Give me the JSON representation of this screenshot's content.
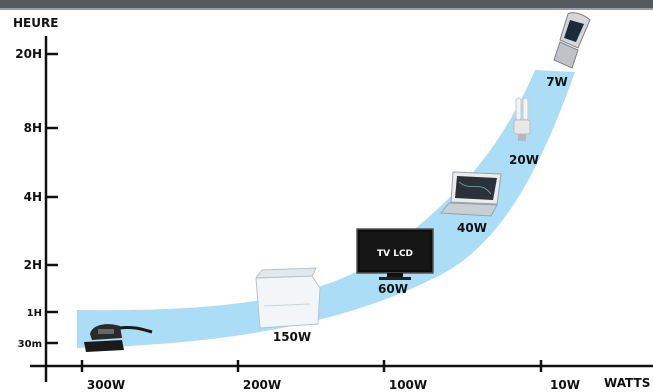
{
  "chart_data": {
    "type": "scatter",
    "title": "",
    "ylabel": "HEURE",
    "xlabel": "WATTS",
    "y_ticks": [
      {
        "label": "30m",
        "hours": 0.5
      },
      {
        "label": "1H",
        "hours": 1
      },
      {
        "label": "2H",
        "hours": 2
      },
      {
        "label": "4H",
        "hours": 4
      },
      {
        "label": "8H",
        "hours": 8
      },
      {
        "label": "20H",
        "hours": 20
      }
    ],
    "x_ticks": [
      {
        "label": "300W",
        "watts": 300
      },
      {
        "label": "200W",
        "watts": 200
      },
      {
        "label": "100W",
        "watts": 100
      },
      {
        "label": "10W",
        "watts": 10
      }
    ],
    "points": [
      {
        "label": "",
        "icon": "sander-icon",
        "watts": 300,
        "hours": 0.5
      },
      {
        "label": "150W",
        "icon": "freezer-icon",
        "watts": 150,
        "hours": 1
      },
      {
        "label": "60W",
        "icon": "tv-lcd-icon",
        "watts": 60,
        "hours": 2
      },
      {
        "label": "40W",
        "icon": "laptop-icon",
        "watts": 40,
        "hours": 3
      },
      {
        "label": "20W",
        "icon": "cfl-bulb-icon",
        "watts": 20,
        "hours": 8
      },
      {
        "label": "7W",
        "icon": "flip-phone-icon",
        "watts": 7,
        "hours": 20
      }
    ],
    "tv_screen_text": "TV LCD",
    "band_color": "#a6dcf6"
  }
}
